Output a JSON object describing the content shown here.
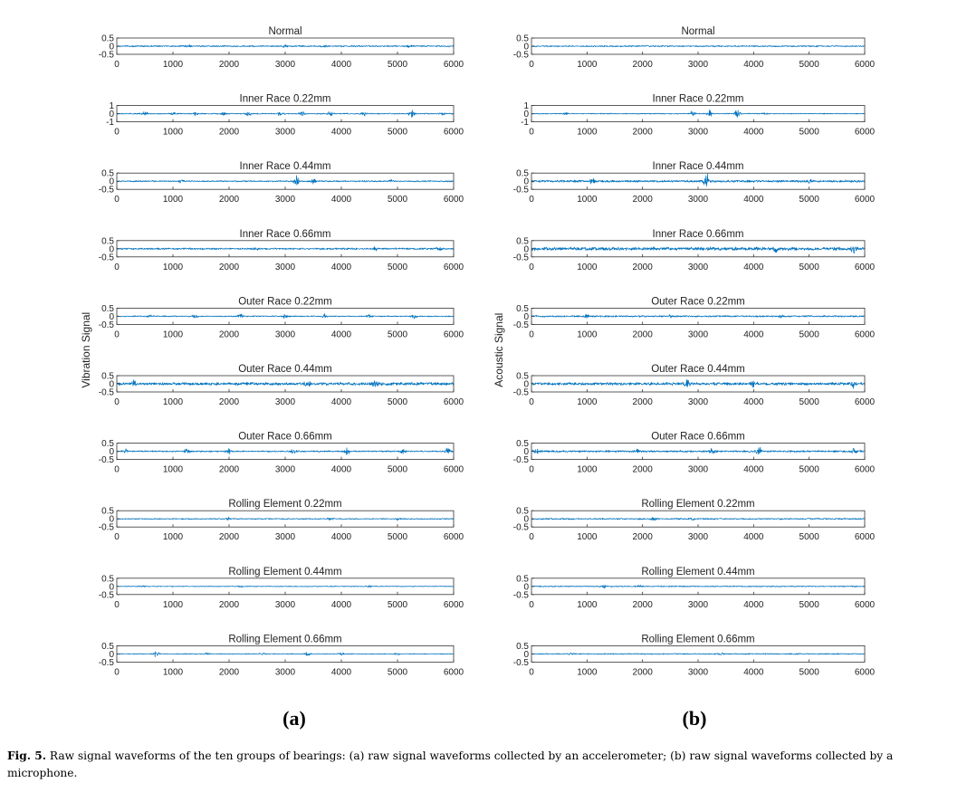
{
  "figure": {
    "panel_labels": [
      "(a)",
      "(b)"
    ],
    "caption_label": "Fig. 5.",
    "caption_text": "Raw signal waveforms of the ten groups of bearings: (a) raw signal waveforms collected by an accelerometer; (b) raw signal waveforms collected by a microphone."
  },
  "chart_data": [
    {
      "type": "line",
      "panel": "(a)",
      "ylabel": "Vibration Signal",
      "line_color": "#0072bd",
      "grid": false,
      "xlim": [
        0,
        6000
      ],
      "xticks": [
        0,
        1000,
        2000,
        3000,
        4000,
        5000,
        6000
      ],
      "subplots": [
        {
          "title": "Normal",
          "ylim": [
            -0.5,
            0.5
          ],
          "yticks": [
            "0.5",
            "0",
            "-0.5"
          ],
          "amplitude": 0.05,
          "bursts": [
            {
              "x": 1300,
              "a": 0.08
            },
            {
              "x": 3000,
              "a": 0.08
            },
            {
              "x": 3700,
              "a": 0.1
            },
            {
              "x": 5200,
              "a": 0.08
            }
          ]
        },
        {
          "title": "Inner Race 0.22mm",
          "ylim": [
            -1,
            1
          ],
          "yticks": [
            "1",
            "0",
            "-1"
          ],
          "amplitude": 0.08,
          "bursts": [
            {
              "x": 500,
              "a": 0.32
            },
            {
              "x": 1000,
              "a": 0.22
            },
            {
              "x": 1400,
              "a": 0.2
            },
            {
              "x": 1900,
              "a": 0.22
            },
            {
              "x": 2350,
              "a": 0.25
            },
            {
              "x": 2900,
              "a": 0.38
            },
            {
              "x": 3300,
              "a": 0.28
            },
            {
              "x": 3800,
              "a": 0.3
            },
            {
              "x": 4400,
              "a": 0.25
            },
            {
              "x": 5250,
              "a": 0.52
            },
            {
              "x": 5800,
              "a": 0.2
            }
          ]
        },
        {
          "title": "Inner Race 0.44mm",
          "ylim": [
            -0.5,
            0.5
          ],
          "yticks": [
            "0.5",
            "0",
            "-0.5"
          ],
          "amplitude": 0.05,
          "bursts": [
            {
              "x": 1150,
              "a": 0.13
            },
            {
              "x": 3200,
              "a": 0.38
            },
            {
              "x": 3500,
              "a": 0.15
            },
            {
              "x": 4900,
              "a": 0.12
            }
          ]
        },
        {
          "title": "Inner Race 0.66mm",
          "ylim": [
            -0.5,
            0.5
          ],
          "yticks": [
            "0.5",
            "0",
            "-0.5"
          ],
          "amplitude": 0.06,
          "bursts": [
            {
              "x": 2500,
              "a": 0.1
            },
            {
              "x": 4600,
              "a": 0.12
            },
            {
              "x": 5750,
              "a": 0.15
            }
          ]
        },
        {
          "title": "Outer Race 0.22mm",
          "ylim": [
            -0.5,
            0.5
          ],
          "yticks": [
            "0.5",
            "0",
            "-0.5"
          ],
          "amplitude": 0.04,
          "bursts": [
            {
              "x": 600,
              "a": 0.12
            },
            {
              "x": 1400,
              "a": 0.14
            },
            {
              "x": 2200,
              "a": 0.13
            },
            {
              "x": 3000,
              "a": 0.14
            },
            {
              "x": 3700,
              "a": 0.13
            },
            {
              "x": 4500,
              "a": 0.13
            },
            {
              "x": 5300,
              "a": 0.14
            }
          ]
        },
        {
          "title": "Outer Race 0.44mm",
          "ylim": [
            -0.5,
            0.5
          ],
          "yticks": [
            "0.5",
            "0",
            "-0.5"
          ],
          "amplitude": 0.11,
          "bursts": [
            {
              "x": 300,
              "a": 0.22
            },
            {
              "x": 3400,
              "a": 0.2
            },
            {
              "x": 4600,
              "a": 0.18
            }
          ]
        },
        {
          "title": "Outer Race 0.66mm",
          "ylim": [
            -0.5,
            0.5
          ],
          "yticks": [
            "0.5",
            "0",
            "-0.5"
          ],
          "amplitude": 0.05,
          "bursts": [
            {
              "x": 150,
              "a": 0.2
            },
            {
              "x": 1250,
              "a": 0.22
            },
            {
              "x": 2000,
              "a": 0.18
            },
            {
              "x": 3150,
              "a": 0.22
            },
            {
              "x": 4100,
              "a": 0.2
            },
            {
              "x": 5100,
              "a": 0.2
            },
            {
              "x": 5900,
              "a": 0.25
            }
          ]
        },
        {
          "title": "Rolling Element 0.22mm",
          "ylim": [
            -0.5,
            0.5
          ],
          "yticks": [
            "0.5",
            "0",
            "-0.5"
          ],
          "amplitude": 0.04,
          "bursts": [
            {
              "x": 2000,
              "a": 0.12
            },
            {
              "x": 3800,
              "a": 0.1
            },
            {
              "x": 5000,
              "a": 0.08
            }
          ]
        },
        {
          "title": "Rolling Element 0.44mm",
          "ylim": [
            -0.5,
            0.5
          ],
          "yticks": [
            "0.5",
            "0",
            "-0.5"
          ],
          "amplitude": 0.03,
          "bursts": [
            {
              "x": 450,
              "a": 0.07
            },
            {
              "x": 2200,
              "a": 0.06
            },
            {
              "x": 4500,
              "a": 0.06
            }
          ]
        },
        {
          "title": "Rolling Element 0.66mm",
          "ylim": [
            -0.5,
            0.5
          ],
          "yticks": [
            "0.5",
            "0",
            "-0.5"
          ],
          "amplitude": 0.03,
          "bursts": [
            {
              "x": 700,
              "a": 0.22
            },
            {
              "x": 1600,
              "a": 0.06
            },
            {
              "x": 2600,
              "a": 0.08
            },
            {
              "x": 3400,
              "a": 0.15
            },
            {
              "x": 4000,
              "a": 0.1
            },
            {
              "x": 5000,
              "a": 0.07
            }
          ]
        }
      ]
    },
    {
      "type": "line",
      "panel": "(b)",
      "ylabel": "Acoustic Signal",
      "line_color": "#0072bd",
      "grid": false,
      "xlim": [
        0,
        6000
      ],
      "xticks": [
        0,
        1000,
        2000,
        3000,
        4000,
        5000,
        6000
      ],
      "subplots": [
        {
          "title": "Normal",
          "ylim": [
            -0.5,
            0.5
          ],
          "yticks": [
            "0.5",
            "0",
            "-0.5"
          ],
          "amplitude": 0.05,
          "bursts": []
        },
        {
          "title": "Inner Race 0.22mm",
          "ylim": [
            -1,
            1
          ],
          "yticks": [
            "1",
            "0",
            "-1"
          ],
          "amplitude": 0.07,
          "bursts": [
            {
              "x": 600,
              "a": 0.15
            },
            {
              "x": 2900,
              "a": 0.35
            },
            {
              "x": 3200,
              "a": 0.45
            },
            {
              "x": 3700,
              "a": 0.85
            },
            {
              "x": 4200,
              "a": 0.12
            }
          ]
        },
        {
          "title": "Inner Race 0.44mm",
          "ylim": [
            -0.5,
            0.5
          ],
          "yticks": [
            "0.5",
            "0",
            "-0.5"
          ],
          "amplitude": 0.08,
          "bursts": [
            {
              "x": 1100,
              "a": 0.15
            },
            {
              "x": 3150,
              "a": 0.5
            },
            {
              "x": 5000,
              "a": 0.12
            }
          ]
        },
        {
          "title": "Inner Race 0.66mm",
          "ylim": [
            -0.5,
            0.5
          ],
          "yticks": [
            "0.5",
            "0",
            "-0.5"
          ],
          "amplitude": 0.12,
          "bursts": [
            {
              "x": 4400,
              "a": 0.2
            },
            {
              "x": 5800,
              "a": 0.25
            }
          ]
        },
        {
          "title": "Outer Race 0.22mm",
          "ylim": [
            -0.5,
            0.5
          ],
          "yticks": [
            "0.5",
            "0",
            "-0.5"
          ],
          "amplitude": 0.06,
          "bursts": [
            {
              "x": 1000,
              "a": 0.1
            },
            {
              "x": 2500,
              "a": 0.1
            },
            {
              "x": 4500,
              "a": 0.1
            }
          ]
        },
        {
          "title": "Outer Race 0.44mm",
          "ylim": [
            -0.5,
            0.5
          ],
          "yticks": [
            "0.5",
            "0",
            "-0.5"
          ],
          "amplitude": 0.1,
          "bursts": [
            {
              "x": 2800,
              "a": 0.22
            },
            {
              "x": 4000,
              "a": 0.2
            },
            {
              "x": 5800,
              "a": 0.2
            }
          ]
        },
        {
          "title": "Outer Race 0.66mm",
          "ylim": [
            -0.5,
            0.5
          ],
          "yticks": [
            "0.5",
            "0",
            "-0.5"
          ],
          "amplitude": 0.07,
          "bursts": [
            {
              "x": 100,
              "a": 0.18
            },
            {
              "x": 1900,
              "a": 0.15
            },
            {
              "x": 3250,
              "a": 0.2
            },
            {
              "x": 4100,
              "a": 0.25
            },
            {
              "x": 5800,
              "a": 0.18
            }
          ]
        },
        {
          "title": "Rolling Element 0.22mm",
          "ylim": [
            -0.5,
            0.5
          ],
          "yticks": [
            "0.5",
            "0",
            "-0.5"
          ],
          "amplitude": 0.05,
          "bursts": [
            {
              "x": 2200,
              "a": 0.1
            },
            {
              "x": 2900,
              "a": 0.08
            }
          ]
        },
        {
          "title": "Rolling Element 0.44mm",
          "ylim": [
            -0.5,
            0.5
          ],
          "yticks": [
            "0.5",
            "0",
            "-0.5"
          ],
          "amplitude": 0.04,
          "bursts": [
            {
              "x": 1300,
              "a": 0.12
            },
            {
              "x": 1950,
              "a": 0.1
            }
          ]
        },
        {
          "title": "Rolling Element 0.66mm",
          "ylim": [
            -0.5,
            0.5
          ],
          "yticks": [
            "0.5",
            "0",
            "-0.5"
          ],
          "amplitude": 0.04,
          "bursts": [
            {
              "x": 700,
              "a": 0.07
            },
            {
              "x": 3400,
              "a": 0.15
            },
            {
              "x": 4800,
              "a": 0.06
            }
          ]
        }
      ]
    }
  ]
}
